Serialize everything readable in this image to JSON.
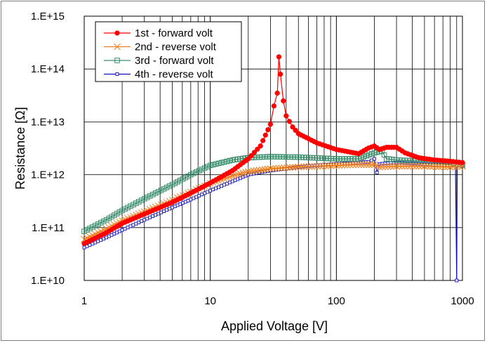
{
  "chart_data": {
    "type": "line",
    "xscale": "log",
    "yscale": "log",
    "xlim": [
      1,
      1000
    ],
    "ylim": [
      10000000000.0,
      1000000000000000.0
    ],
    "xlabel": "Applied Voltage [V]",
    "ylabel": "Resistance [Ω]",
    "x_ticks": [
      {
        "v": 1,
        "label": "1"
      },
      {
        "v": 10,
        "label": "10"
      },
      {
        "v": 100,
        "label": "100"
      },
      {
        "v": 1000,
        "label": "1000"
      }
    ],
    "y_ticks": [
      {
        "v": 10000000000.0,
        "label": "1.E+10"
      },
      {
        "v": 100000000000.0,
        "label": "1.E+11"
      },
      {
        "v": 1000000000000.0,
        "label": "1.E+12"
      },
      {
        "v": 10000000000000.0,
        "label": "1.E+13"
      },
      {
        "v": 100000000000000.0,
        "label": "1.E+14"
      },
      {
        "v": 1000000000000000.0,
        "label": "1.E+15"
      }
    ],
    "series": [
      {
        "name": "1st - forward volt",
        "color": "#ff0000",
        "marker": "circle",
        "points": [
          [
            1,
            50000000000.0
          ],
          [
            1.5,
            80000000000.0
          ],
          [
            2,
            120000000000.0
          ],
          [
            3,
            180000000000.0
          ],
          [
            5,
            300000000000.0
          ],
          [
            7,
            450000000000.0
          ],
          [
            10,
            700000000000.0
          ],
          [
            15,
            1200000000000.0
          ],
          [
            20,
            2000000000000.0
          ],
          [
            25,
            3500000000000.0
          ],
          [
            30,
            9000000000000.0
          ],
          [
            32,
            20000000000000.0
          ],
          [
            34,
            35000000000000.0
          ],
          [
            35,
            170000000000000.0
          ],
          [
            36,
            80000000000000.0
          ],
          [
            38,
            25000000000000.0
          ],
          [
            40,
            13000000000000.0
          ],
          [
            45,
            8000000000000.0
          ],
          [
            50,
            6000000000000.0
          ],
          [
            70,
            4000000000000.0
          ],
          [
            100,
            3000000000000.0
          ],
          [
            150,
            2500000000000.0
          ],
          [
            180,
            3200000000000.0
          ],
          [
            200,
            3500000000000.0
          ],
          [
            220,
            3000000000000.0
          ],
          [
            250,
            3300000000000.0
          ],
          [
            300,
            3300000000000.0
          ],
          [
            350,
            2600000000000.0
          ],
          [
            450,
            2100000000000.0
          ],
          [
            600,
            1900000000000.0
          ],
          [
            800,
            1800000000000.0
          ],
          [
            1000,
            1700000000000.0
          ]
        ]
      },
      {
        "name": "2nd - reverse volt",
        "color": "#f08020",
        "marker": "x",
        "points": [
          [
            1,
            60000000000.0
          ],
          [
            1.5,
            95000000000.0
          ],
          [
            2,
            135000000000.0
          ],
          [
            3,
            200000000000.0
          ],
          [
            5,
            330000000000.0
          ],
          [
            7,
            470000000000.0
          ],
          [
            10,
            680000000000.0
          ],
          [
            15,
            950000000000.0
          ],
          [
            20,
            1150000000000.0
          ],
          [
            30,
            1300000000000.0
          ],
          [
            50,
            1400000000000.0
          ],
          [
            100,
            1500000000000.0
          ],
          [
            150,
            1550000000000.0
          ],
          [
            200,
            1550000000000.0
          ],
          [
            220,
            1400000000000.0
          ],
          [
            300,
            1450000000000.0
          ],
          [
            500,
            1450000000000.0
          ],
          [
            800,
            1400000000000.0
          ],
          [
            1000,
            1450000000000.0
          ]
        ]
      },
      {
        "name": "3rd - forward volt",
        "color": "#3a8a6a",
        "marker": "square",
        "points": [
          [
            1,
            85000000000.0
          ],
          [
            1.5,
            140000000000.0
          ],
          [
            2,
            210000000000.0
          ],
          [
            3,
            350000000000.0
          ],
          [
            5,
            650000000000.0
          ],
          [
            7,
            1000000000000.0
          ],
          [
            10,
            1500000000000.0
          ],
          [
            15,
            1900000000000.0
          ],
          [
            20,
            2100000000000.0
          ],
          [
            30,
            2200000000000.0
          ],
          [
            50,
            2150000000000.0
          ],
          [
            100,
            2000000000000.0
          ],
          [
            150,
            2000000000000.0
          ],
          [
            200,
            2600000000000.0
          ],
          [
            230,
            2800000000000.0
          ],
          [
            250,
            2000000000000.0
          ],
          [
            300,
            1900000000000.0
          ],
          [
            500,
            1800000000000.0
          ],
          [
            800,
            1700000000000.0
          ],
          [
            1000,
            1500000000000.0
          ]
        ]
      },
      {
        "name": "4th - reverse volt",
        "color": "#1010c0",
        "marker": "smallsquare",
        "points": [
          [
            1,
            42000000000.0
          ],
          [
            1.5,
            65000000000.0
          ],
          [
            2,
            90000000000.0
          ],
          [
            3,
            140000000000.0
          ],
          [
            5,
            240000000000.0
          ],
          [
            7,
            340000000000.0
          ],
          [
            10,
            500000000000.0
          ],
          [
            15,
            750000000000.0
          ],
          [
            20,
            1000000000000.0
          ],
          [
            30,
            1200000000000.0
          ],
          [
            50,
            1400000000000.0
          ],
          [
            100,
            1600000000000.0
          ],
          [
            150,
            1700000000000.0
          ],
          [
            180,
            1750000000000.0
          ],
          [
            200,
            2000000000000.0
          ],
          [
            210,
            1100000000000.0
          ],
          [
            220,
            1600000000000.0
          ],
          [
            300,
            1700000000000.0
          ],
          [
            500,
            1600000000000.0
          ],
          [
            800,
            1500000000000.0
          ],
          [
            880,
            1550000000000.0
          ],
          [
            900,
            10000000000.0
          ],
          [
            910,
            1500000000000.0
          ],
          [
            1000,
            1500000000000.0
          ]
        ]
      }
    ],
    "legend": [
      "1st - forward volt",
      "2nd - reverse volt",
      "3rd - forward volt",
      "4th - reverse volt"
    ]
  }
}
